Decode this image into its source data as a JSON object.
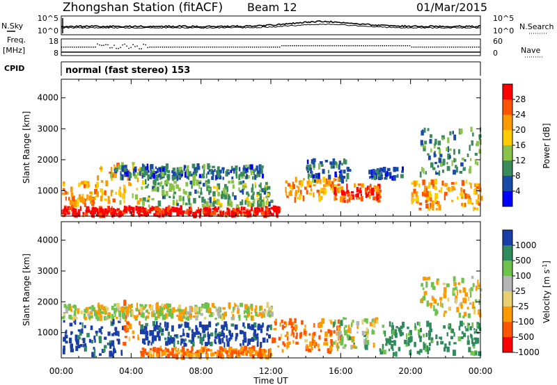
{
  "header": {
    "title": "Zhongshan Station (fitACF)",
    "beam": "Beam 12",
    "date": "01/Mar/2015"
  },
  "strip_labels": {
    "nsky": "N.Sky",
    "freq_top": "Freq.",
    "freq_unit": "[MHz]",
    "cpid": "CPID",
    "nsearch": "N.Search",
    "nave": "Nave",
    "cpid_text": "normal (fast stereo) 153"
  },
  "strip_ticks": {
    "noise_left": [
      "10^5",
      "10^0"
    ],
    "noise_right": [
      "10^5",
      "10^0"
    ],
    "freq_left": [
      "18",
      "8"
    ],
    "nave_right": [
      "60",
      "0"
    ]
  },
  "xaxis": {
    "label": "Time UT",
    "ticks": [
      "00:00",
      "04:00",
      "08:00",
      "12:00",
      "16:00",
      "20:00",
      "00:00"
    ]
  },
  "yaxis": {
    "label": "Slant Range [km]",
    "ticks": [
      "4000",
      "3000",
      "2000",
      "1000"
    ]
  },
  "power_scale": {
    "label": "Power [dB]",
    "ticks": [
      "28",
      "24",
      "20",
      "16",
      "12",
      "8",
      "4"
    ],
    "colors": [
      "#ff0000",
      "#ff5500",
      "#ff9900",
      "#ffcc00",
      "#8bc34a",
      "#3a8a5c",
      "#1a4aa8",
      "#0000ff"
    ]
  },
  "velocity_scale": {
    "label": "Velocity [m s",
    "label_sup": "-1",
    "label_end": "]",
    "ticks": [
      "1000",
      "500",
      "100",
      "25",
      "-25",
      "-100",
      "-500",
      "-1000"
    ],
    "colors": [
      "#1a3ea8",
      "#2f8a5c",
      "#6cc24a",
      "#b4b4b4",
      "#e6d070",
      "#ff9900",
      "#ff5500",
      "#ff0000"
    ]
  },
  "chart_data": [
    {
      "type": "heatmap",
      "title": "Power",
      "xlabel": "Time UT",
      "ylabel": "Slant Range [km]",
      "x_range_hours": [
        0,
        24
      ],
      "ylim_km": [
        180,
        4600
      ],
      "colorbar_label": "Power [dB]",
      "colorbar_range": [
        0,
        32
      ],
      "echo_regions": [
        {
          "t0": 0.0,
          "t1": 12.5,
          "r0": 200,
          "r1": 450,
          "value": 30
        },
        {
          "t0": 0.0,
          "t1": 2.0,
          "r0": 500,
          "r1": 1300,
          "value": 22
        },
        {
          "t0": 2.0,
          "t1": 4.5,
          "r0": 600,
          "r1": 1900,
          "value": 20
        },
        {
          "t0": 4.5,
          "t1": 12.0,
          "r0": 500,
          "r1": 1300,
          "value": 12
        },
        {
          "t0": 3.0,
          "t1": 11.5,
          "r0": 1400,
          "r1": 1800,
          "value": 8
        },
        {
          "t0": 12.8,
          "t1": 16.0,
          "r0": 700,
          "r1": 1400,
          "value": 22
        },
        {
          "t0": 15.5,
          "t1": 18.2,
          "r0": 650,
          "r1": 1200,
          "value": 28
        },
        {
          "t0": 14.0,
          "t1": 16.5,
          "r0": 1300,
          "r1": 2000,
          "value": 8
        },
        {
          "t0": 17.5,
          "t1": 19.5,
          "r0": 1400,
          "r1": 1700,
          "value": 6
        },
        {
          "t0": 20.0,
          "t1": 24.0,
          "r0": 400,
          "r1": 1300,
          "value": 22
        },
        {
          "t0": 20.5,
          "t1": 24.0,
          "r0": 1500,
          "r1": 3000,
          "value": 10
        }
      ]
    },
    {
      "type": "heatmap",
      "title": "Velocity",
      "xlabel": "Time UT",
      "ylabel": "Slant Range [km]",
      "x_range_hours": [
        0,
        24
      ],
      "ylim_km": [
        180,
        4600
      ],
      "colorbar_label": "Velocity [m s-1]",
      "colorbar_range": [
        -1000,
        1000
      ],
      "echo_regions": [
        {
          "t0": 0.0,
          "t1": 3.5,
          "r0": 250,
          "r1": 1400,
          "value": 900
        },
        {
          "t0": 3.5,
          "t1": 4.5,
          "r0": 500,
          "r1": 2000,
          "value": -300
        },
        {
          "t0": 0.0,
          "t1": 12.0,
          "r0": 1450,
          "r1": 1900,
          "value": 0
        },
        {
          "t0": 4.5,
          "t1": 12.0,
          "r0": 200,
          "r1": 500,
          "value": -300
        },
        {
          "t0": 4.5,
          "t1": 12.0,
          "r0": 600,
          "r1": 1300,
          "value": 900
        },
        {
          "t0": 12.0,
          "t1": 16.0,
          "r0": 400,
          "r1": 1400,
          "value": -300
        },
        {
          "t0": 15.5,
          "t1": 18.2,
          "r0": 500,
          "r1": 1500,
          "value": 120
        },
        {
          "t0": 18.2,
          "t1": 24.0,
          "r0": 300,
          "r1": 1300,
          "value": 450
        },
        {
          "t0": 20.5,
          "t1": 24.0,
          "r0": 1500,
          "r1": 2800,
          "value": 0
        }
      ]
    }
  ]
}
